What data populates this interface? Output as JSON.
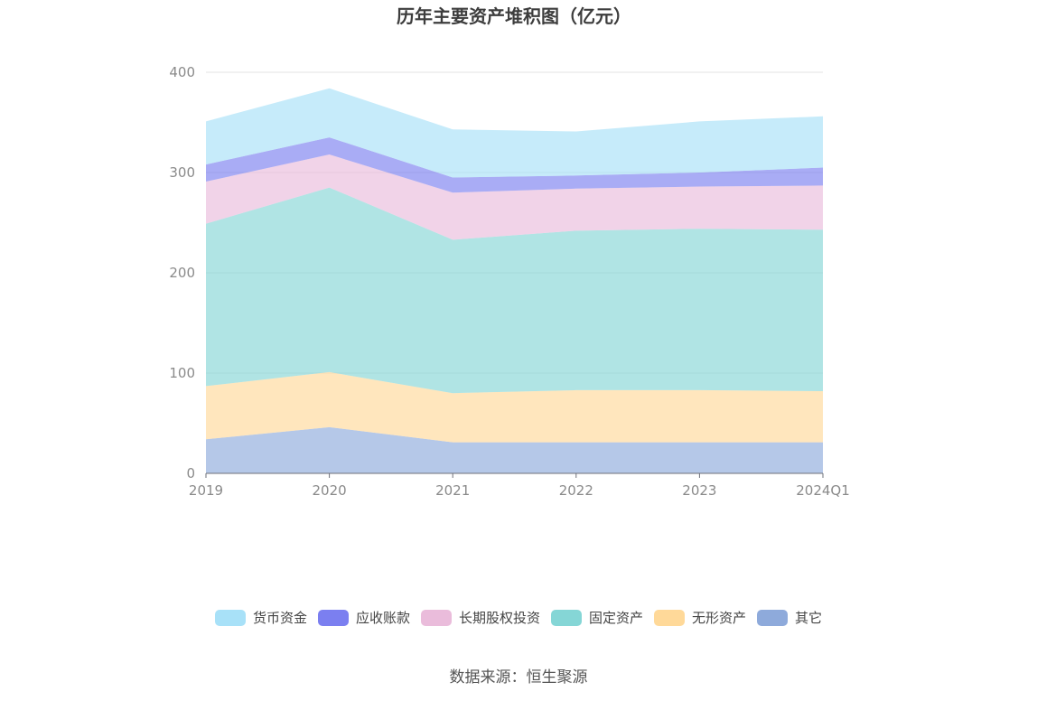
{
  "chart_data": {
    "type": "area",
    "stacked": true,
    "title": "历年主要资产堆积图（亿元）",
    "x": [
      "2019",
      "2020",
      "2021",
      "2022",
      "2023",
      "2024Q1"
    ],
    "ylim": [
      0,
      400
    ],
    "yticks": [
      0,
      100,
      200,
      300,
      400
    ],
    "grid": true,
    "legend_position": "bottom",
    "series": [
      {
        "name": "其它",
        "color": "#8eaadb",
        "values": [
          34,
          46,
          31,
          31,
          31,
          31
        ]
      },
      {
        "name": "无形资产",
        "color": "#ffd999",
        "values": [
          53,
          55,
          49,
          52,
          52,
          51
        ]
      },
      {
        "name": "固定资产",
        "color": "#85d6d6",
        "values": [
          162,
          184,
          153,
          159,
          161,
          161
        ]
      },
      {
        "name": "长期股权投资",
        "color": "#eabcdb",
        "values": [
          42,
          33,
          47,
          42,
          42,
          44
        ]
      },
      {
        "name": "应收账款",
        "color": "#7b7ff0",
        "values": [
          17,
          17,
          15,
          13,
          14,
          18
        ]
      },
      {
        "name": "货币资金",
        "color": "#a8e1f8",
        "values": [
          43,
          49,
          48,
          44,
          51,
          51
        ]
      }
    ],
    "legend_order": [
      "货币资金",
      "应收账款",
      "长期股权投资",
      "固定资产",
      "无形资产",
      "其它"
    ]
  },
  "source_text": "数据来源：恒生聚源"
}
